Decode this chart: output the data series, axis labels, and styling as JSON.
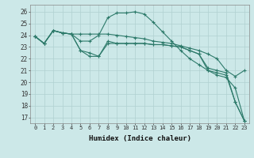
{
  "xlabel": "Humidex (Indice chaleur)",
  "bg_color": "#cce8e8",
  "grid_color": "#b0d0d0",
  "line_color": "#2d7a6a",
  "xlim": [
    -0.5,
    23.5
  ],
  "ylim": [
    16.5,
    26.6
  ],
  "yticks": [
    17,
    18,
    19,
    20,
    21,
    22,
    23,
    24,
    25,
    26
  ],
  "xticks": [
    0,
    1,
    2,
    3,
    4,
    5,
    6,
    7,
    8,
    9,
    10,
    11,
    12,
    13,
    14,
    15,
    16,
    17,
    18,
    19,
    20,
    21,
    22,
    23
  ],
  "series": [
    {
      "x": [
        0,
        1,
        2,
        3,
        4,
        5,
        6,
        7,
        8,
        9,
        10,
        11,
        12,
        13,
        14,
        15,
        16,
        17,
        18,
        19,
        20,
        21,
        22,
        23
      ],
      "y": [
        23.9,
        23.3,
        24.4,
        24.2,
        24.1,
        24.1,
        24.1,
        24.1,
        24.1,
        24.0,
        23.9,
        23.8,
        23.7,
        23.5,
        23.4,
        23.3,
        23.1,
        22.9,
        22.7,
        22.4,
        22.0,
        21.0,
        20.5,
        21.0
      ]
    },
    {
      "x": [
        0,
        1,
        2,
        3,
        4,
        5,
        6,
        7,
        8,
        9,
        10,
        11,
        12,
        13,
        14,
        15,
        16,
        17,
        18,
        19,
        20,
        21,
        22,
        23
      ],
      "y": [
        23.9,
        23.3,
        24.4,
        24.2,
        24.1,
        23.5,
        23.5,
        24.0,
        25.5,
        25.9,
        25.9,
        26.0,
        25.8,
        25.1,
        24.3,
        23.5,
        22.7,
        22.0,
        21.5,
        21.0,
        20.6,
        20.4,
        19.5,
        16.7
      ]
    },
    {
      "x": [
        0,
        1,
        2,
        3,
        4,
        5,
        6,
        7,
        8,
        9,
        10,
        11,
        12,
        13,
        14,
        15,
        16,
        17,
        18,
        19,
        20,
        21,
        22,
        23
      ],
      "y": [
        23.9,
        23.3,
        24.4,
        24.2,
        24.1,
        22.7,
        22.5,
        22.2,
        23.3,
        23.3,
        23.3,
        23.3,
        23.3,
        23.2,
        23.2,
        23.1,
        23.0,
        22.7,
        22.4,
        21.2,
        21.0,
        20.8,
        18.3,
        16.7
      ]
    },
    {
      "x": [
        0,
        1,
        2,
        3,
        4,
        5,
        6,
        7,
        8,
        9,
        10,
        11,
        12,
        13,
        14,
        15,
        16,
        17,
        18,
        19,
        20,
        21,
        22,
        23
      ],
      "y": [
        23.9,
        23.3,
        24.4,
        24.2,
        24.1,
        22.7,
        22.2,
        22.2,
        23.5,
        23.3,
        23.3,
        23.3,
        23.3,
        23.2,
        23.2,
        23.1,
        23.0,
        22.7,
        22.4,
        21.0,
        20.8,
        20.6,
        18.3,
        16.7
      ]
    }
  ]
}
